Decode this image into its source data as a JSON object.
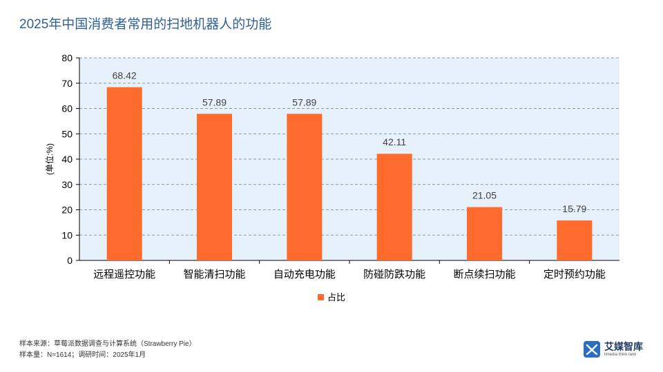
{
  "title": "2025年中国消费者常用的扫地机器人的功能",
  "chart_data": {
    "type": "bar",
    "categories": [
      "远程遥控功能",
      "智能清扫功能",
      "自动充电功能",
      "防碰防跌功能",
      "断点续扫功能",
      "定时预约功能"
    ],
    "series": [
      {
        "name": "占比",
        "values": [
          68.42,
          57.89,
          57.89,
          42.11,
          21.05,
          15.79
        ]
      }
    ],
    "value_labels": [
      "68.42",
      "57.89",
      "57.89",
      "42.11",
      "21.05",
      "15.79"
    ],
    "ylabel": "(单位:%)",
    "xlabel": "",
    "ylim": [
      0,
      80
    ],
    "yticks": [
      "0",
      "10",
      "20",
      "30",
      "40",
      "50",
      "60",
      "70",
      "80"
    ],
    "grid": true,
    "legend_position": "bottom",
    "bar_color": "#ff6b2c",
    "plot_background": "#e6f1fc",
    "grid_color": "#7f9bb5"
  },
  "footer": {
    "source": "样本来源：草莓派数据调查与计算系统（Strawberry Pie）",
    "sample": "样本量：N=1614；调研时间：2025年1月"
  },
  "logo": {
    "icon": "ai-media-logo-icon",
    "name": "艾媒智库",
    "subtitle": "iimedia think tank"
  }
}
